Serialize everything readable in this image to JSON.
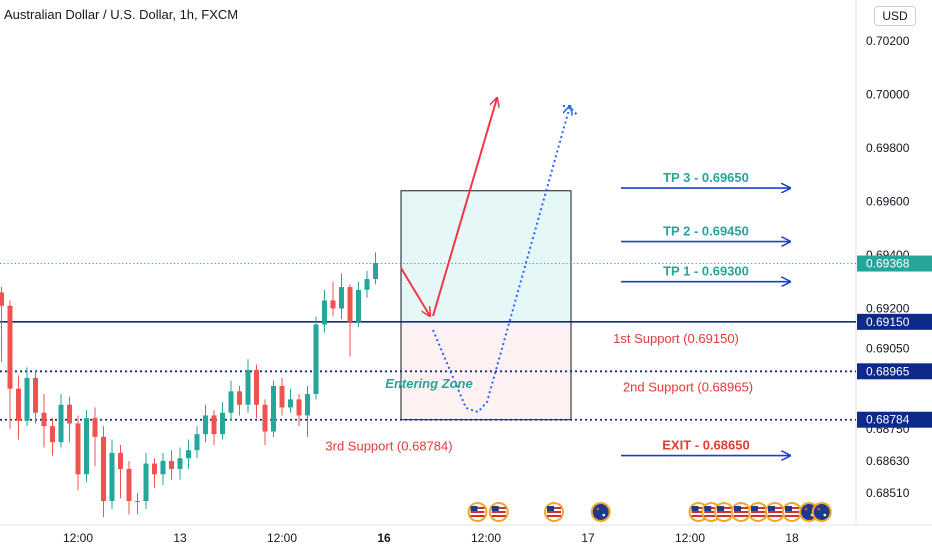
{
  "header": {
    "title": "Australian Dollar / U.S. Dollar, 1h, FXCM",
    "currency": "USD"
  },
  "chart_data": {
    "type": "candlestick",
    "ylim": [
      0.6843,
      0.7034
    ],
    "y_ticks": [
      {
        "value": 0.702,
        "label": "0.70200"
      },
      {
        "value": 0.7,
        "label": "0.70000"
      },
      {
        "value": 0.698,
        "label": "0.69800"
      },
      {
        "value": 0.696,
        "label": "0.69600"
      },
      {
        "value": 0.694,
        "label": "0.69400"
      },
      {
        "value": 0.692,
        "label": "0.69200"
      },
      {
        "value": 0.6905,
        "label": "0.69050"
      },
      {
        "value": 0.6875,
        "label": "0.68750"
      },
      {
        "value": 0.6863,
        "label": "0.68630"
      },
      {
        "value": 0.6851,
        "label": "0.68510"
      }
    ],
    "x_ticks": [
      {
        "x": 0,
        "label": "12:00",
        "bold": false
      },
      {
        "x": 12,
        "label": "13",
        "bold": false
      },
      {
        "x": 24,
        "label": "12:00",
        "bold": false
      },
      {
        "x": 36,
        "label": "16",
        "bold": true
      },
      {
        "x": 48,
        "label": "12:00",
        "bold": false
      },
      {
        "x": 60,
        "label": "17",
        "bold": false
      },
      {
        "x": 72,
        "label": "12:00",
        "bold": false
      },
      {
        "x": 84,
        "label": "18",
        "bold": false
      }
    ],
    "candles": [
      [
        -12,
        0.6937,
        0.6924,
        0.6941,
        0.6919
      ],
      [
        -11,
        0.6924,
        0.6918,
        0.6927,
        0.6912
      ],
      [
        -10,
        0.6918,
        0.6926,
        0.6929,
        0.6915
      ],
      [
        -9,
        0.6926,
        0.6921,
        0.6928,
        0.69
      ],
      [
        -8,
        0.6921,
        0.689,
        0.6923,
        0.6875
      ],
      [
        -7,
        0.689,
        0.6878,
        0.6895,
        0.6871
      ],
      [
        -6,
        0.6878,
        0.6894,
        0.6898,
        0.6876
      ],
      [
        -5,
        0.6894,
        0.6881,
        0.6897,
        0.6877
      ],
      [
        -4,
        0.6881,
        0.6876,
        0.6888,
        0.6868
      ],
      [
        -3,
        0.6876,
        0.687,
        0.6879,
        0.6865
      ],
      [
        -2,
        0.687,
        0.6884,
        0.6888,
        0.6868
      ],
      [
        -1,
        0.6884,
        0.6877,
        0.6887,
        0.687
      ],
      [
        0,
        0.6877,
        0.6858,
        0.688,
        0.6852
      ],
      [
        1,
        0.6858,
        0.6879,
        0.6882,
        0.6855
      ],
      [
        2,
        0.6879,
        0.6872,
        0.6883,
        0.6861
      ],
      [
        3,
        0.6872,
        0.6848,
        0.6876,
        0.6842
      ],
      [
        4,
        0.6848,
        0.6866,
        0.6871,
        0.6845
      ],
      [
        5,
        0.6866,
        0.686,
        0.6869,
        0.6849
      ],
      [
        6,
        0.686,
        0.6848,
        0.6863,
        0.6843
      ],
      [
        7,
        0.6848,
        0.6848,
        0.6851,
        0.6843
      ],
      [
        8,
        0.6848,
        0.6862,
        0.6866,
        0.6845
      ],
      [
        9,
        0.6862,
        0.6858,
        0.6864,
        0.6853
      ],
      [
        10,
        0.6858,
        0.6863,
        0.6866,
        0.6854
      ],
      [
        11,
        0.6863,
        0.686,
        0.6867,
        0.6856
      ],
      [
        12,
        0.686,
        0.6864,
        0.6868,
        0.6856
      ],
      [
        13,
        0.6864,
        0.6867,
        0.6871,
        0.686
      ],
      [
        14,
        0.6867,
        0.6873,
        0.6876,
        0.6864
      ],
      [
        15,
        0.6873,
        0.688,
        0.6884,
        0.687
      ],
      [
        16,
        0.688,
        0.6873,
        0.6882,
        0.6869
      ],
      [
        17,
        0.6873,
        0.6881,
        0.6885,
        0.6871
      ],
      [
        18,
        0.6881,
        0.6889,
        0.6893,
        0.6878
      ],
      [
        19,
        0.6889,
        0.6884,
        0.6891,
        0.688
      ],
      [
        20,
        0.6884,
        0.6897,
        0.6901,
        0.6881
      ],
      [
        21,
        0.6897,
        0.6884,
        0.6899,
        0.6879
      ],
      [
        22,
        0.6884,
        0.6874,
        0.6886,
        0.6869
      ],
      [
        23,
        0.6874,
        0.6891,
        0.6893,
        0.6872
      ],
      [
        24,
        0.6891,
        0.6883,
        0.6894,
        0.688
      ],
      [
        25,
        0.6883,
        0.6886,
        0.689,
        0.6881
      ],
      [
        26,
        0.6886,
        0.688,
        0.6888,
        0.6876
      ],
      [
        27,
        0.688,
        0.6888,
        0.6891,
        0.6872
      ],
      [
        28,
        0.6888,
        0.6914,
        0.6917,
        0.6886
      ],
      [
        29,
        0.6914,
        0.6923,
        0.6927,
        0.6911
      ],
      [
        30,
        0.6923,
        0.692,
        0.693,
        0.6917
      ],
      [
        31,
        0.692,
        0.6928,
        0.6933,
        0.6916
      ],
      [
        32,
        0.6928,
        0.6915,
        0.6929,
        0.6902
      ],
      [
        33,
        0.6915,
        0.6927,
        0.693,
        0.6913
      ],
      [
        34,
        0.6927,
        0.6931,
        0.6934,
        0.6924
      ],
      [
        35,
        0.6931,
        0.6937,
        0.6941,
        0.6929
      ]
    ],
    "horizontal_lines": [
      {
        "name": "last-price-line",
        "value": 0.69368,
        "label": "0.69368",
        "color": "#26a69a",
        "style": "dotted"
      },
      {
        "name": "first-support-line",
        "value": 0.6915,
        "label": "0.69150",
        "color": "#0d2a8a",
        "style": "solid"
      },
      {
        "name": "second-support-line",
        "value": 0.68965,
        "label": "0.68965",
        "color": "#0d2a8a",
        "style": "dotted"
      },
      {
        "name": "third-support-line",
        "value": 0.68784,
        "label": "0.68784",
        "color": "#0d2a8a",
        "style": "dotted"
      }
    ],
    "zones": {
      "profit": {
        "x_from": 38,
        "x_to": 58,
        "top": 0.6964,
        "bottom": 0.6915,
        "color": "#e6f7f8"
      },
      "loss": {
        "x_from": 38,
        "x_to": 58,
        "top": 0.6915,
        "bottom": 0.68784,
        "color": "#fdf1f1"
      }
    },
    "targets": [
      {
        "name": "tp3",
        "label": "TP 3 - 0.69650",
        "value": 0.6965,
        "color": "#26a69a"
      },
      {
        "name": "tp2",
        "label": "TP 2 - 0.69450",
        "value": 0.6945,
        "color": "#26a69a"
      },
      {
        "name": "tp1",
        "label": "TP 1 - 0.69300",
        "value": 0.693,
        "color": "#26a69a"
      },
      {
        "name": "exit",
        "label": "EXIT - 0.68650",
        "value": 0.6865,
        "color": "#e53935"
      }
    ],
    "support_labels": [
      {
        "name": "first-support-label",
        "label": "1st Support (0.69150)",
        "value": 0.6915,
        "color": "#e53935"
      },
      {
        "name": "second-support-label",
        "label": "2nd Support (0.68965)",
        "value": 0.68965,
        "color": "#e53935"
      },
      {
        "name": "third-support-label",
        "label": "3rd Support (0.68784)",
        "value": 0.68784,
        "color": "#e53935"
      }
    ],
    "entering_zone_label": "Entering Zone",
    "event_flags": [
      {
        "x": 47,
        "kind": "us"
      },
      {
        "x": 49.5,
        "kind": "us"
      },
      {
        "x": 56,
        "kind": "us"
      },
      {
        "x": 61.5,
        "kind": "au"
      },
      {
        "x": 73,
        "kind": "us"
      },
      {
        "x": 74.5,
        "kind": "us"
      },
      {
        "x": 76,
        "kind": "us"
      },
      {
        "x": 78,
        "kind": "us"
      },
      {
        "x": 80,
        "kind": "us"
      },
      {
        "x": 82,
        "kind": "us"
      },
      {
        "x": 84,
        "kind": "us"
      },
      {
        "x": 86,
        "kind": "au"
      },
      {
        "x": 87.5,
        "kind": "au"
      }
    ],
    "colors": {
      "up": "#26a69a",
      "down": "#ef5350",
      "projection": "#f23645",
      "alt_projection": "#2962ff",
      "support_line": "#0d2a8a"
    }
  }
}
